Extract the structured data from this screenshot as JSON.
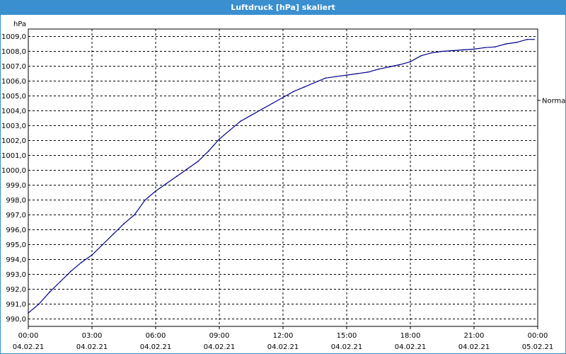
{
  "window": {
    "title": "Luftdruck [hPa] skaliert"
  },
  "colors": {
    "titlebar": "#3a8fd0",
    "line": "#00008b",
    "grid": "#000000"
  },
  "chart_data": {
    "type": "line",
    "title": "Luftdruck [hPa] skaliert",
    "ylabel": "hPa",
    "ylim": [
      989.5,
      1009.5
    ],
    "y_ticks": [
      "990,0",
      "991,0",
      "992,0",
      "993,0",
      "994,0",
      "995,0",
      "996,0",
      "997,0",
      "998,0",
      "999,0",
      "1000,0",
      "1001,0",
      "1002,0",
      "1003,0",
      "1004,0",
      "1005,0",
      "1006,0",
      "1007,0",
      "1008,0",
      "1009,0"
    ],
    "x_ticks": [
      {
        "time": "00:00",
        "date": "04.02.21"
      },
      {
        "time": "03:00",
        "date": "04.02.21"
      },
      {
        "time": "06:00",
        "date": "04.02.21"
      },
      {
        "time": "09:00",
        "date": "04.02.21"
      },
      {
        "time": "12:00",
        "date": "04.02.21"
      },
      {
        "time": "15:00",
        "date": "04.02.21"
      },
      {
        "time": "18:00",
        "date": "04.02.21"
      },
      {
        "time": "21:00",
        "date": "04.02.21"
      },
      {
        "time": "00:00",
        "date": "05.02.21"
      }
    ],
    "grid": true,
    "reference": {
      "label": "Normal",
      "value": 1004.7
    },
    "series": [
      {
        "x": [
          "04.02.21 00:00",
          "04.02.21 00:30",
          "04.02.21 01:00",
          "04.02.21 01:30",
          "04.02.21 02:00",
          "04.02.21 02:30",
          "04.02.21 03:00",
          "04.02.21 03:30",
          "04.02.21 04:00",
          "04.02.21 04:30",
          "04.02.21 05:00",
          "04.02.21 05:30",
          "04.02.21 06:00",
          "04.02.21 06:30",
          "04.02.21 07:00",
          "04.02.21 07:30",
          "04.02.21 08:00",
          "04.02.21 08:30",
          "04.02.21 09:00",
          "04.02.21 09:30",
          "04.02.21 10:00",
          "04.02.21 10:30",
          "04.02.21 11:00",
          "04.02.21 11:30",
          "04.02.21 12:00",
          "04.02.21 12:30",
          "04.02.21 13:00",
          "04.02.21 13:30",
          "04.02.21 14:00",
          "04.02.21 14:30",
          "04.02.21 15:00",
          "04.02.21 15:30",
          "04.02.21 16:00",
          "04.02.21 16:30",
          "04.02.21 17:00",
          "04.02.21 17:30",
          "04.02.21 18:00",
          "04.02.21 18:30",
          "04.02.21 19:00",
          "04.02.21 19:30",
          "04.02.21 20:00",
          "04.02.21 20:30",
          "04.02.21 21:00",
          "04.02.21 21:30",
          "04.02.21 22:00",
          "04.02.21 22:30",
          "04.02.21 23:00",
          "04.02.21 23:30",
          "04.02.21 23:50"
        ],
        "values": [
          990.4,
          991.0,
          991.8,
          992.5,
          993.2,
          993.8,
          994.3,
          995.0,
          995.7,
          996.4,
          997.0,
          998.0,
          998.6,
          999.1,
          999.6,
          1000.1,
          1000.6,
          1001.3,
          1002.1,
          1002.7,
          1003.3,
          1003.7,
          1004.1,
          1004.5,
          1004.9,
          1005.3,
          1005.6,
          1005.9,
          1006.2,
          1006.3,
          1006.4,
          1006.5,
          1006.6,
          1006.8,
          1006.95,
          1007.1,
          1007.3,
          1007.7,
          1007.9,
          1008.0,
          1008.05,
          1008.1,
          1008.15,
          1008.25,
          1008.3,
          1008.5,
          1008.6,
          1008.8,
          1008.8
        ]
      }
    ]
  }
}
